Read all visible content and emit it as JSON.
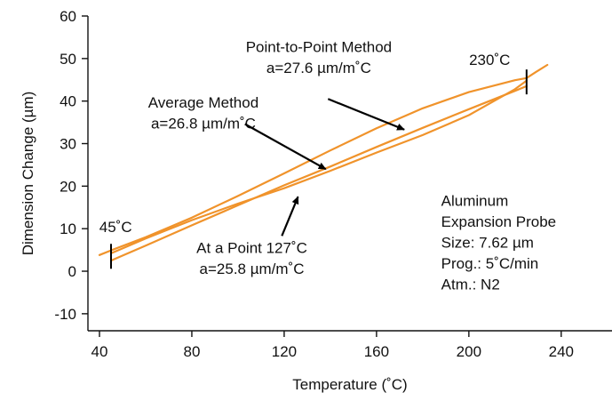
{
  "colors": {
    "curve": "#f0932b",
    "axis": "#111111",
    "arrow": "#000000",
    "text": "#111111"
  },
  "chart_data": {
    "type": "line",
    "title": "",
    "xlabel": "Temperature (˚C)",
    "ylabel": "Dimension Change (µm)",
    "xlim": [
      35,
      262
    ],
    "ylim": [
      -14,
      60
    ],
    "xticks": [
      40,
      80,
      120,
      160,
      200,
      240
    ],
    "xtick_labels": [
      "40",
      "80",
      "120",
      "160",
      "200",
      "240"
    ],
    "yticks": [
      -10,
      0,
      10,
      20,
      30,
      40,
      50,
      60
    ],
    "ytick_labels": [
      "-10",
      "0",
      "10",
      "20",
      "30",
      "40",
      "50",
      "60"
    ],
    "grid": false,
    "legend": "none",
    "series": [
      {
        "x": [
          40,
          45,
          60,
          80,
          100,
          120,
          140,
          160,
          180,
          200,
          220,
          225,
          229,
          234
        ],
        "y": [
          3.8,
          4.9,
          8.0,
          12.6,
          17.7,
          23.0,
          28.4,
          33.6,
          38.3,
          42.1,
          44.9,
          45.4,
          46.8,
          48.5
        ]
      },
      {
        "x": [
          45,
          60,
          80,
          100,
          120,
          140,
          160,
          180,
          200,
          220,
          225
        ],
        "y": [
          2.5,
          6.0,
          10.8,
          15.5,
          20.2,
          24.6,
          29.2,
          33.7,
          38.1,
          42.4,
          43.5
        ]
      },
      {
        "x": [
          45,
          60,
          80,
          100,
          120,
          140,
          160,
          180,
          200,
          220,
          225
        ],
        "y": [
          4.2,
          7.7,
          12.0,
          15.9,
          19.5,
          23.6,
          27.9,
          32.0,
          36.7,
          42.8,
          44.8
        ]
      }
    ],
    "markers": [
      {
        "x": 45,
        "y": 3.5
      },
      {
        "x": 225,
        "y": 44.5
      }
    ],
    "annotations": [
      {
        "lines": [
          "Point-to-Point Method",
          "a=27.6 µm/m˚C"
        ],
        "x": 135,
        "y": 51.5,
        "align": "middle",
        "arrow": {
          "from": [
            139,
            40.5
          ],
          "to": [
            172,
            33.3
          ]
        }
      },
      {
        "lines": [
          "230˚C"
        ],
        "x": 209,
        "y": 48.5,
        "align": "middle"
      },
      {
        "lines": [
          "Average Method",
          "a=26.8 µm/m˚C"
        ],
        "x": 85,
        "y": 38.5,
        "align": "middle",
        "arrow": {
          "from": [
            103,
            34.6
          ],
          "to": [
            138,
            24.0
          ]
        }
      },
      {
        "lines": [
          "45˚C"
        ],
        "x": 47,
        "y": 9.2,
        "align": "middle"
      },
      {
        "lines": [
          "At a Point  127˚C",
          "a=25.8 µm/m˚C"
        ],
        "x": 106,
        "y": 4.3,
        "align": "middle",
        "arrow": {
          "from": [
            119,
            8.3
          ],
          "to": [
            126,
            17.5
          ]
        }
      },
      {
        "lines": [
          "Aluminum",
          "Expansion Probe",
          "Size: 7.62 µm",
          "Prog.: 5˚C/min",
          "Atm.: N2"
        ],
        "x": 188,
        "y": 15.4,
        "align": "start"
      }
    ]
  }
}
